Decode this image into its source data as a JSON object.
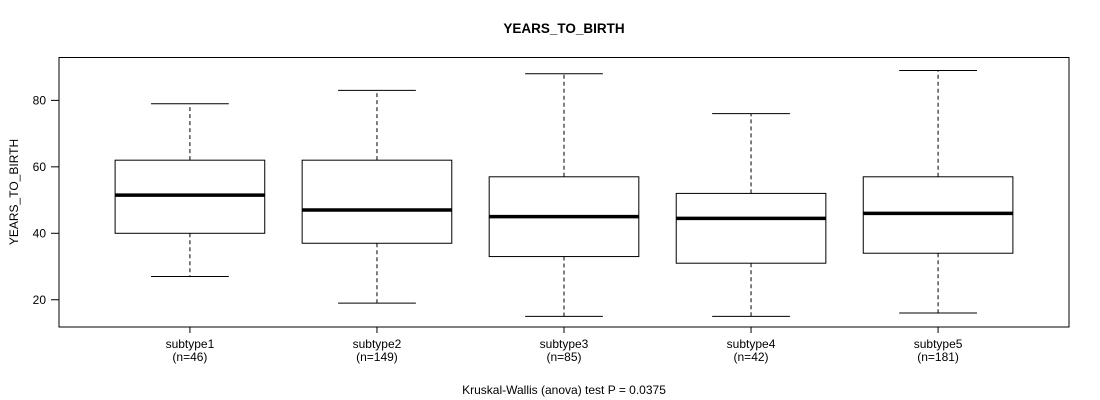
{
  "title": "YEARS_TO_BIRTH",
  "caption": "Kruskal-Wallis (anova) test P = 0.0375",
  "chart_data": {
    "type": "boxplot",
    "title": "YEARS_TO_BIRTH",
    "xlabel": "",
    "ylabel": "YEARS_TO_BIRTH",
    "caption": "Kruskal-Wallis (anova) test P = 0.0375",
    "ylim": [
      11.8,
      92.9
    ],
    "yticks": [
      20,
      40,
      60,
      80
    ],
    "grid": false,
    "legend": "none",
    "colors": {
      "line": "#000000",
      "box_fill": "#ffffff",
      "background": "#ffffff"
    },
    "categories": [
      "subtype1",
      "subtype2",
      "subtype3",
      "subtype4",
      "subtype5"
    ],
    "groups": [
      {
        "label": "subtype1",
        "n_label": "(n=46)",
        "n": 46,
        "lower_whisker": 27,
        "q1": 40,
        "median": 51.5,
        "q3": 62,
        "upper_whisker": 79
      },
      {
        "label": "subtype2",
        "n_label": "(n=149)",
        "n": 149,
        "lower_whisker": 19,
        "q1": 37,
        "median": 47,
        "q3": 62,
        "upper_whisker": 83
      },
      {
        "label": "subtype3",
        "n_label": "(n=85)",
        "n": 85,
        "lower_whisker": 15,
        "q1": 33,
        "median": 45,
        "q3": 57,
        "upper_whisker": 88
      },
      {
        "label": "subtype4",
        "n_label": "(n=42)",
        "n": 42,
        "lower_whisker": 15,
        "q1": 31,
        "median": 44.5,
        "q3": 52,
        "upper_whisker": 76
      },
      {
        "label": "subtype5",
        "n_label": "(n=181)",
        "n": 181,
        "lower_whisker": 16,
        "q1": 34,
        "median": 46,
        "q3": 57,
        "upper_whisker": 89
      }
    ]
  }
}
